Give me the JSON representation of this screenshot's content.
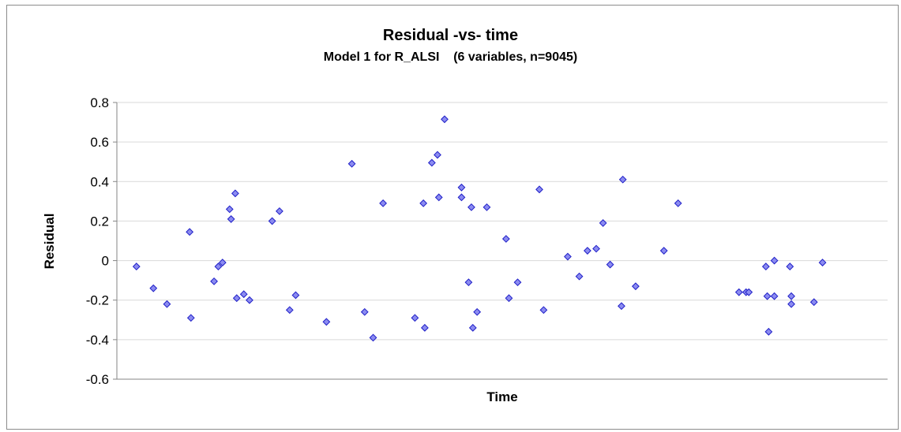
{
  "chart_data": {
    "type": "scatter",
    "title": "Residual -vs- time",
    "subtitle": "Model 1 for R_ALSI    (6 variables, n=9045)",
    "xlabel": "Time",
    "ylabel": "Residual",
    "ylim": [
      -0.6,
      0.8
    ],
    "yticks": [
      0.8,
      0.6,
      0.4,
      0.2,
      0,
      -0.2,
      -0.4,
      -0.6
    ],
    "ytick_labels": [
      "0.8",
      "0.6",
      "0.4",
      "0.2",
      "0",
      "-0.2",
      "-0.4",
      "-0.6"
    ],
    "xlim": [
      0,
      1000
    ],
    "x_tick_labels_shown": false,
    "grid": "horizontal",
    "legend": "none",
    "marker": "diamond",
    "colors": {
      "marker_fill": "#8b8bf0",
      "marker_edge": "#1f1fc8",
      "grid": "#d9d9d9",
      "axis": "#868686"
    },
    "series": [
      {
        "values": [
          {
            "x": 25.4,
            "y": -0.03
          },
          {
            "x": 47.4,
            "y": -0.14
          },
          {
            "x": 65.0,
            "y": -0.22
          },
          {
            "x": 94.4,
            "y": 0.145
          },
          {
            "x": 96.1,
            "y": -0.29
          },
          {
            "x": 153.6,
            "y": 0.34
          },
          {
            "x": 224.2,
            "y": -0.25
          },
          {
            "x": 271.9,
            "y": -0.31
          },
          {
            "x": 304.9,
            "y": 0.49
          },
          {
            "x": 321.5,
            "y": -0.26
          },
          {
            "x": 332.5,
            "y": -0.39
          },
          {
            "x": 345.4,
            "y": 0.29
          },
          {
            "x": 386.7,
            "y": -0.29
          },
          {
            "x": 397.7,
            "y": 0.29
          },
          {
            "x": 399.5,
            "y": -0.34
          },
          {
            "x": 408.7,
            "y": 0.495
          },
          {
            "x": 416.0,
            "y": 0.535
          },
          {
            "x": 417.8,
            "y": 0.32
          },
          {
            "x": 425.2,
            "y": 0.715
          },
          {
            "x": 447.2,
            "y": 0.37
          },
          {
            "x": 447.2,
            "y": 0.32
          },
          {
            "x": 456.4,
            "y": -0.11
          },
          {
            "x": 460.0,
            "y": 0.27
          },
          {
            "x": 461.9,
            "y": -0.34
          },
          {
            "x": 467.4,
            "y": -0.26
          },
          {
            "x": 508.7,
            "y": -0.19
          },
          {
            "x": 548.2,
            "y": 0.36
          },
          {
            "x": 553.7,
            "y": -0.25
          },
          {
            "x": 610.6,
            "y": 0.05
          },
          {
            "x": 630.8,
            "y": 0.19
          },
          {
            "x": 656.5,
            "y": 0.41
          },
          {
            "x": 654.7,
            "y": -0.23
          },
          {
            "x": 673.1,
            "y": -0.13
          },
          {
            "x": 709.8,
            "y": 0.05
          },
          {
            "x": 728.2,
            "y": 0.29
          },
          {
            "x": 807.2,
            "y": -0.16
          },
          {
            "x": 816.4,
            "y": -0.16
          },
          {
            "x": 820.0,
            "y": -0.16
          },
          {
            "x": 842.1,
            "y": -0.03
          },
          {
            "x": 843.9,
            "y": -0.18
          },
          {
            "x": 845.7,
            "y": -0.36
          },
          {
            "x": 853.1,
            "y": -0.18
          },
          {
            "x": 853.1,
            "y": 0.0
          },
          {
            "x": 873.3,
            "y": -0.03
          },
          {
            "x": 875.1,
            "y": -0.18
          },
          {
            "x": 875.1,
            "y": -0.22
          },
          {
            "x": 904.5,
            "y": -0.21
          },
          {
            "x": 915.6,
            "y": -0.01
          },
          {
            "x": 146.3,
            "y": 0.26
          },
          {
            "x": 148.2,
            "y": 0.21
          },
          {
            "x": 126.1,
            "y": -0.105
          },
          {
            "x": 131.6,
            "y": -0.03
          },
          {
            "x": 137.1,
            "y": -0.01
          },
          {
            "x": 155.5,
            "y": -0.19
          },
          {
            "x": 164.7,
            "y": -0.17
          },
          {
            "x": 172.1,
            "y": -0.2
          },
          {
            "x": 201.5,
            "y": 0.2
          },
          {
            "x": 211.0,
            "y": 0.25
          },
          {
            "x": 232.0,
            "y": -0.175
          },
          {
            "x": 480.0,
            "y": 0.27
          },
          {
            "x": 505.0,
            "y": 0.11
          },
          {
            "x": 520.0,
            "y": -0.11
          },
          {
            "x": 585.0,
            "y": 0.02
          },
          {
            "x": 600.0,
            "y": -0.08
          },
          {
            "x": 622.0,
            "y": 0.06
          },
          {
            "x": 640.0,
            "y": -0.02
          }
        ]
      }
    ]
  }
}
